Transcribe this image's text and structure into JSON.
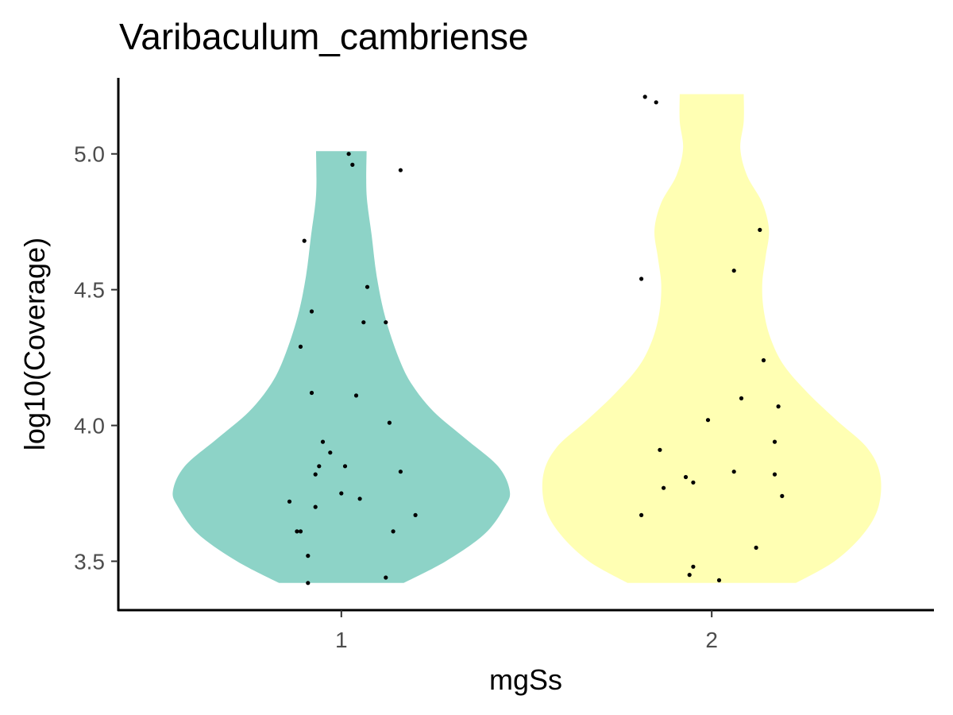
{
  "chart_data": {
    "type": "violin",
    "title": "Varibaculum_cambriense",
    "xlabel": "mgSs",
    "ylabel": "log10(Coverage)",
    "categories": [
      "1",
      "2"
    ],
    "ylim": [
      3.32,
      5.28
    ],
    "yticks": [
      3.5,
      4.0,
      4.5,
      5.0
    ],
    "ytick_labels": [
      "3.5",
      "4.0",
      "4.5",
      "5.0"
    ],
    "grid": false,
    "legend": "none",
    "series": [
      {
        "category": "1",
        "color": "#8dd3c7",
        "y_range": [
          3.42,
          5.01
        ],
        "density_profile": [
          [
            3.42,
            0.37
          ],
          [
            3.5,
            0.62
          ],
          [
            3.6,
            0.85
          ],
          [
            3.7,
            0.97
          ],
          [
            3.76,
            1.0
          ],
          [
            3.85,
            0.93
          ],
          [
            3.95,
            0.74
          ],
          [
            4.05,
            0.55
          ],
          [
            4.15,
            0.42
          ],
          [
            4.25,
            0.34
          ],
          [
            4.4,
            0.26
          ],
          [
            4.55,
            0.21
          ],
          [
            4.7,
            0.18
          ],
          [
            4.85,
            0.15
          ],
          [
            5.01,
            0.15
          ]
        ],
        "points": [
          {
            "x": 1.02,
            "y": 5.0
          },
          {
            "x": 1.03,
            "y": 4.96
          },
          {
            "x": 1.16,
            "y": 4.94
          },
          {
            "x": 0.9,
            "y": 4.68
          },
          {
            "x": 1.07,
            "y": 4.51
          },
          {
            "x": 0.92,
            "y": 4.42
          },
          {
            "x": 1.06,
            "y": 4.38
          },
          {
            "x": 1.12,
            "y": 4.38
          },
          {
            "x": 0.89,
            "y": 4.29
          },
          {
            "x": 0.92,
            "y": 4.12
          },
          {
            "x": 1.04,
            "y": 4.11
          },
          {
            "x": 1.13,
            "y": 4.01
          },
          {
            "x": 0.95,
            "y": 3.94
          },
          {
            "x": 0.97,
            "y": 3.9
          },
          {
            "x": 0.94,
            "y": 3.85
          },
          {
            "x": 1.01,
            "y": 3.85
          },
          {
            "x": 1.16,
            "y": 3.83
          },
          {
            "x": 0.93,
            "y": 3.82
          },
          {
            "x": 1.0,
            "y": 3.75
          },
          {
            "x": 1.05,
            "y": 3.73
          },
          {
            "x": 0.86,
            "y": 3.72
          },
          {
            "x": 0.93,
            "y": 3.7
          },
          {
            "x": 1.2,
            "y": 3.67
          },
          {
            "x": 0.88,
            "y": 3.61
          },
          {
            "x": 0.89,
            "y": 3.61
          },
          {
            "x": 1.14,
            "y": 3.61
          },
          {
            "x": 0.91,
            "y": 3.52
          },
          {
            "x": 1.12,
            "y": 3.44
          },
          {
            "x": 0.91,
            "y": 3.42
          }
        ]
      },
      {
        "category": "2",
        "color": "#ffffb3",
        "y_range": [
          3.42,
          5.22
        ],
        "density_profile": [
          [
            3.42,
            0.5
          ],
          [
            3.5,
            0.73
          ],
          [
            3.6,
            0.9
          ],
          [
            3.7,
            0.99
          ],
          [
            3.82,
            1.0
          ],
          [
            3.92,
            0.92
          ],
          [
            4.02,
            0.74
          ],
          [
            4.12,
            0.57
          ],
          [
            4.22,
            0.43
          ],
          [
            4.32,
            0.35
          ],
          [
            4.42,
            0.31
          ],
          [
            4.52,
            0.3
          ],
          [
            4.62,
            0.32
          ],
          [
            4.72,
            0.34
          ],
          [
            4.82,
            0.3
          ],
          [
            4.92,
            0.21
          ],
          [
            5.02,
            0.17
          ],
          [
            5.12,
            0.19
          ],
          [
            5.22,
            0.19
          ]
        ],
        "points": [
          {
            "x": 1.82,
            "y": 5.21
          },
          {
            "x": 1.85,
            "y": 5.19
          },
          {
            "x": 2.13,
            "y": 4.72
          },
          {
            "x": 2.06,
            "y": 4.57
          },
          {
            "x": 1.81,
            "y": 4.54
          },
          {
            "x": 2.14,
            "y": 4.24
          },
          {
            "x": 2.08,
            "y": 4.1
          },
          {
            "x": 2.18,
            "y": 4.07
          },
          {
            "x": 1.99,
            "y": 4.02
          },
          {
            "x": 2.17,
            "y": 3.94
          },
          {
            "x": 1.86,
            "y": 3.91
          },
          {
            "x": 2.06,
            "y": 3.83
          },
          {
            "x": 2.17,
            "y": 3.82
          },
          {
            "x": 1.93,
            "y": 3.81
          },
          {
            "x": 1.95,
            "y": 3.79
          },
          {
            "x": 1.87,
            "y": 3.77
          },
          {
            "x": 2.19,
            "y": 3.74
          },
          {
            "x": 1.81,
            "y": 3.67
          },
          {
            "x": 2.12,
            "y": 3.55
          },
          {
            "x": 1.95,
            "y": 3.48
          },
          {
            "x": 1.94,
            "y": 3.45
          },
          {
            "x": 2.02,
            "y": 3.43
          }
        ]
      }
    ]
  }
}
